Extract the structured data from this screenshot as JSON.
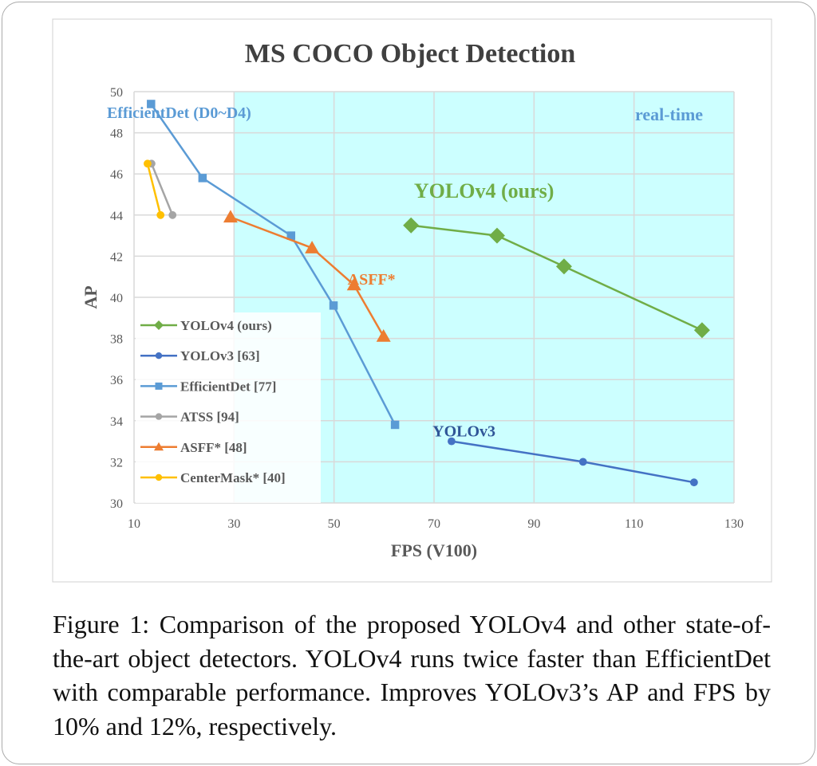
{
  "chart_data": {
    "type": "line",
    "title": "MS COCO Object Detection",
    "xlabel": "FPS (V100)",
    "ylabel": "AP",
    "xlim": [
      10,
      130
    ],
    "ylim": [
      30,
      50
    ],
    "xticks": [
      10,
      30,
      50,
      70,
      90,
      110,
      130
    ],
    "yticks": [
      30,
      32,
      34,
      36,
      38,
      40,
      42,
      44,
      46,
      48,
      50
    ],
    "grid": true,
    "legend_placement": "bottom-left",
    "shaded_region": {
      "label": "real-time",
      "x_from": 30,
      "x_to": 130,
      "color": "#ccffff"
    },
    "series": [
      {
        "name": "YOLOv4 (ours)",
        "color": "#70ad47",
        "marker": "diamond",
        "x": [
          65.4,
          82.6,
          96.0,
          123.6
        ],
        "y": [
          43.5,
          43.0,
          41.5,
          38.4
        ]
      },
      {
        "name": "YOLOv3 [63]",
        "color": "#4472c4",
        "marker": "circle",
        "x": [
          73.5,
          99.8,
          122.0
        ],
        "y": [
          33.0,
          32.0,
          31.0
        ]
      },
      {
        "name": "EfficientDet [77]",
        "color": "#5b9bd5",
        "marker": "square",
        "x": [
          13.4,
          23.7,
          41.4,
          49.9,
          62.2
        ],
        "y": [
          49.4,
          45.8,
          43.0,
          39.6,
          33.8
        ]
      },
      {
        "name": "ATSS [94]",
        "color": "#a5a5a5",
        "marker": "circle",
        "x": [
          13.5,
          17.7
        ],
        "y": [
          46.5,
          44.0
        ]
      },
      {
        "name": "ASFF* [48]",
        "color": "#ed7d31",
        "marker": "triangle",
        "x": [
          29.3,
          45.6,
          54.0,
          59.9
        ],
        "y": [
          43.9,
          42.4,
          40.6,
          38.1
        ]
      },
      {
        "name": "CenterMask* [40]",
        "color": "#ffc000",
        "marker": "circle",
        "x": [
          12.7,
          15.3
        ],
        "y": [
          46.5,
          44.0
        ]
      }
    ],
    "annotations": [
      {
        "text": "EfficientDet (D0~D4)",
        "x": 19,
        "y": 49.0,
        "color": "#5b9bd5",
        "size": 20
      },
      {
        "text": "real-time",
        "x": 117,
        "y": 48.9,
        "color": "#5b9bd5",
        "size": 22
      },
      {
        "text": "YOLOv4 (ours)",
        "x": 80,
        "y": 45.2,
        "color": "#70ad47",
        "size": 26
      },
      {
        "text": "ASFF*",
        "x": 57.5,
        "y": 40.9,
        "color": "#ed7d31",
        "size": 20
      },
      {
        "text": "YOLOv3",
        "x": 76,
        "y": 33.5,
        "color": "#2f5597",
        "size": 20
      }
    ]
  },
  "caption": "Figure 1: Comparison of the proposed YOLOv4 and other state-of-the-art object detectors. YOLOv4 runs twice faster than EfficientDet with comparable performance. Improves YOLOv3’s AP and FPS by 10% and 12%, respectively."
}
